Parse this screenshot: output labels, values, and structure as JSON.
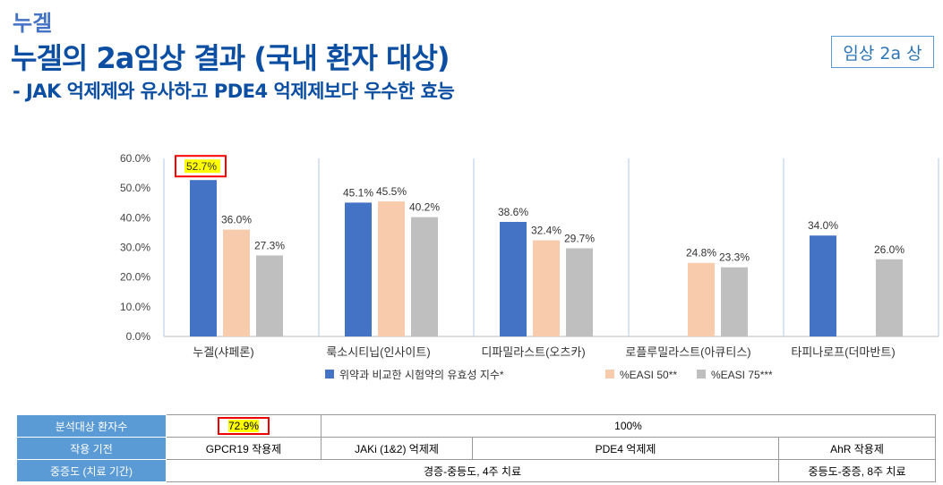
{
  "header": {
    "brand": "누겔",
    "title": "누겔의 2a임상 결과 (국내 환자 대상)",
    "subtitle": "- JAK 억제제와 유사하고 PDE4 억제제보다 우수한 효능",
    "badge": "임상 2a 상"
  },
  "chart_data": {
    "type": "bar",
    "categories": [
      "누겔(샤페론)",
      "룩소시티닙(인사이트)",
      "디파밀라스트(오츠카)",
      "로플루밀라스트(아큐티스)",
      "타피나로프(더마반트)"
    ],
    "series": [
      {
        "name": "위약과 비교한 시험약의 유효성 지수*",
        "color": "#4472c4",
        "values": [
          52.7,
          45.1,
          38.6,
          null,
          34.0
        ]
      },
      {
        "name": "%EASI 50**",
        "color": "#f8cbad",
        "values": [
          36.0,
          45.5,
          32.4,
          24.8,
          null
        ]
      },
      {
        "name": "%EASI 75***",
        "color": "#bfbfbf",
        "values": [
          27.3,
          40.2,
          29.7,
          23.3,
          26.0
        ]
      }
    ],
    "yticks": [
      "0.0%",
      "10.0%",
      "20.0%",
      "30.0%",
      "40.0%",
      "50.0%",
      "60.0%"
    ],
    "ylim": [
      0,
      60
    ],
    "highlight": {
      "category": "누겔(샤페론)",
      "series": "위약과 비교한 시험약의 유효성 지수*",
      "color": "#ff0000"
    },
    "legend": "bottom"
  },
  "table": {
    "rows": [
      {
        "header": "분석대상 환자수",
        "cells": [
          "72.9%",
          "100%"
        ]
      },
      {
        "header": "작용 기전",
        "cells": [
          "GPCR19 작용제",
          "JAKi (1&2) 억제제",
          "PDE4 억제제",
          "AhR 작용제"
        ]
      },
      {
        "header": "중증도 (치료 기간)",
        "cells": [
          "경증-중등도, 4주 치료",
          "중등도-중증, 8주 치료"
        ]
      }
    ]
  }
}
